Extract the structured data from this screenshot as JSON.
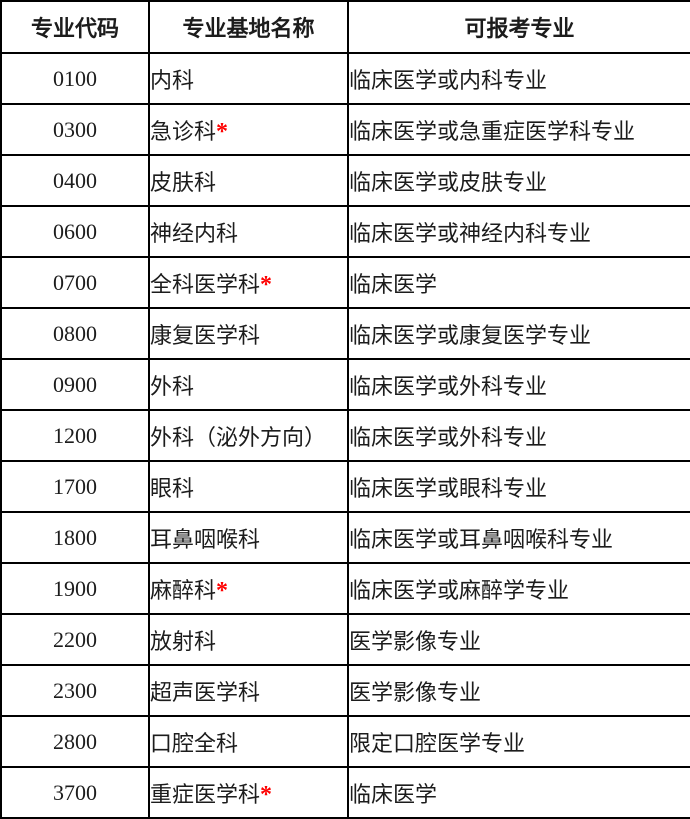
{
  "colors": {
    "border": "#000000",
    "text": "#1c1c1c",
    "asterisk": "#fe0000",
    "background": "#ffffff"
  },
  "table": {
    "columns": [
      {
        "label": "专业代码"
      },
      {
        "label": "专业基地名称"
      },
      {
        "label": "可报考专业"
      }
    ],
    "asterisk_glyph": "*",
    "rows": [
      {
        "code": "0100",
        "base": "内科",
        "asterisk": false,
        "eligible": "临床医学或内科专业"
      },
      {
        "code": "0300",
        "base": "急诊科",
        "asterisk": true,
        "eligible": "临床医学或急重症医学科专业"
      },
      {
        "code": "0400",
        "base": "皮肤科",
        "asterisk": false,
        "eligible": "临床医学或皮肤专业"
      },
      {
        "code": "0600",
        "base": "神经内科",
        "asterisk": false,
        "eligible": "临床医学或神经内科专业"
      },
      {
        "code": "0700",
        "base": "全科医学科",
        "asterisk": true,
        "eligible": "临床医学"
      },
      {
        "code": "0800",
        "base": "康复医学科",
        "asterisk": false,
        "eligible": "临床医学或康复医学专业"
      },
      {
        "code": "0900",
        "base": "外科",
        "asterisk": false,
        "eligible": "临床医学或外科专业"
      },
      {
        "code": "1200",
        "base": "外科（泌外方向）",
        "asterisk": false,
        "eligible": "临床医学或外科专业"
      },
      {
        "code": "1700",
        "base": "眼科",
        "asterisk": false,
        "eligible": "临床医学或眼科专业"
      },
      {
        "code": "1800",
        "base": "耳鼻咽喉科",
        "asterisk": false,
        "eligible": "临床医学或耳鼻咽喉科专业"
      },
      {
        "code": "1900",
        "base": "麻醉科",
        "asterisk": true,
        "eligible": "临床医学或麻醉学专业"
      },
      {
        "code": "2200",
        "base": "放射科",
        "asterisk": false,
        "eligible": "医学影像专业"
      },
      {
        "code": "2300",
        "base": "超声医学科",
        "asterisk": false,
        "eligible": "医学影像专业"
      },
      {
        "code": "2800",
        "base": "口腔全科",
        "asterisk": false,
        "eligible": "限定口腔医学专业"
      },
      {
        "code": "3700",
        "base": "重症医学科",
        "asterisk": true,
        "eligible": "临床医学"
      }
    ]
  }
}
